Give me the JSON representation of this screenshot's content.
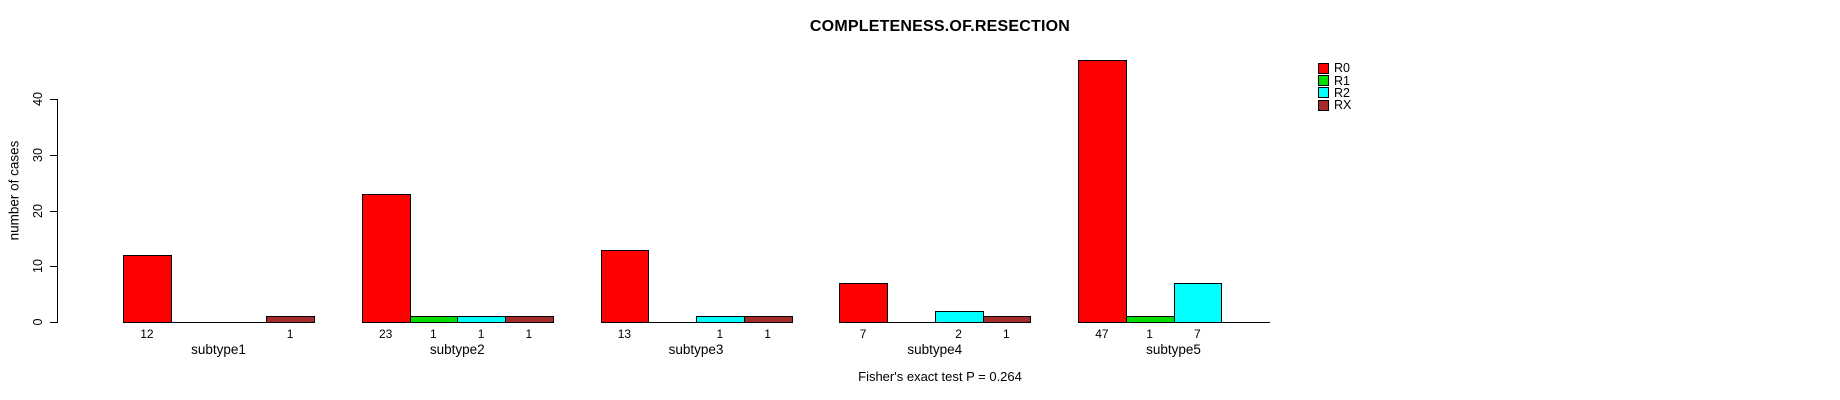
{
  "title": "COMPLETENESS.OF.RESECTION",
  "annotation": "Fisher's exact test P = 0.264",
  "chart_data": {
    "type": "bar",
    "grouped": true,
    "title": "COMPLETENESS.OF.RESECTION",
    "xlabel": "",
    "ylabel": "number of cases",
    "categories": [
      "subtype1",
      "subtype2",
      "subtype3",
      "subtype4",
      "subtype5"
    ],
    "series": [
      {
        "name": "R0",
        "color": "#FF0000",
        "values": [
          12,
          23,
          13,
          7,
          47
        ]
      },
      {
        "name": "R1",
        "color": "#00DD00",
        "values": [
          0,
          1,
          0,
          0,
          1
        ]
      },
      {
        "name": "R2",
        "color": "#00FFFF",
        "values": [
          0,
          1,
          1,
          2,
          7
        ]
      },
      {
        "name": "RX",
        "color": "#A52A2A",
        "values": [
          1,
          1,
          1,
          1,
          0
        ]
      }
    ],
    "yticks": [
      0,
      10,
      20,
      30,
      40
    ],
    "ylim": [
      0,
      48
    ],
    "grid": false,
    "legend_position": "right-of-plot",
    "bar_labels": "value shown under each non-zero bar",
    "annotation": "Fisher's exact test P = 0.264"
  }
}
